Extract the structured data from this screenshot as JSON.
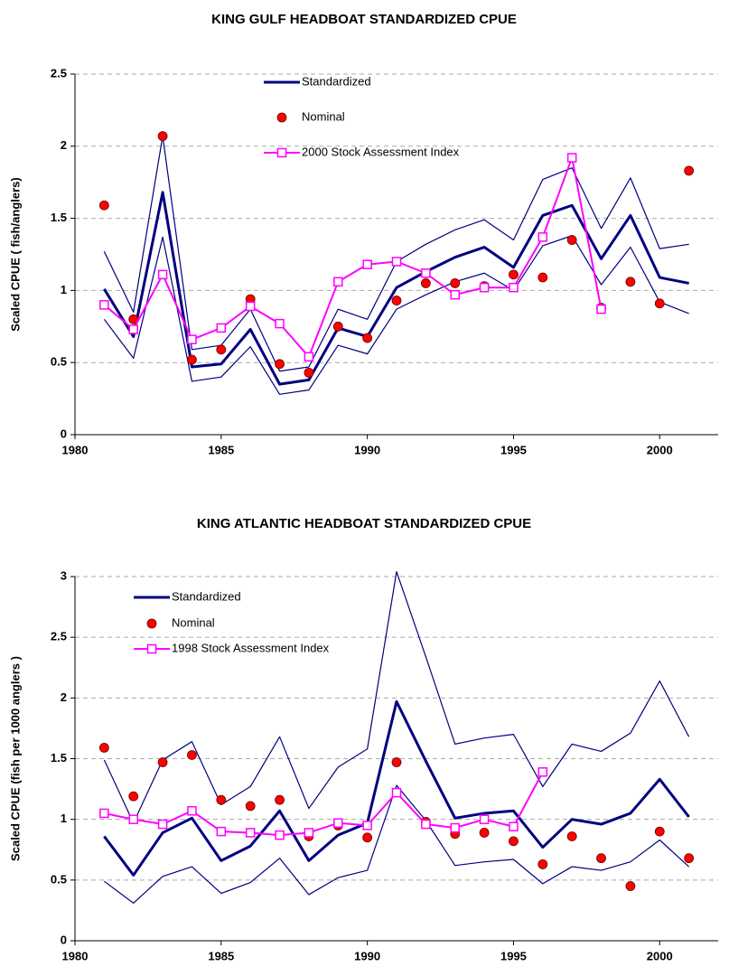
{
  "chart_data": [
    {
      "type": "line",
      "title": "KING GULF HEADBOAT STANDARDIZED CPUE",
      "y_label": "Scaled CPUE ( fish/anglers)",
      "x": [
        1981,
        1982,
        1983,
        1984,
        1985,
        1986,
        1987,
        1988,
        1989,
        1990,
        1991,
        1992,
        1993,
        1994,
        1995,
        1996,
        1997,
        1998,
        1999,
        2000,
        2001
      ],
      "xlim": [
        1980,
        2002
      ],
      "xticks": [
        1980,
        1985,
        1990,
        1995,
        2000
      ],
      "ylim": [
        0,
        2.5
      ],
      "yticks": [
        0,
        0.5,
        1,
        1.5,
        2,
        2.5
      ],
      "grid": true,
      "series": [
        {
          "name": "Standardized",
          "color": "#000080",
          "style": "thick-line",
          "values": [
            1.01,
            0.68,
            1.68,
            0.47,
            0.49,
            0.73,
            0.35,
            0.38,
            0.74,
            0.68,
            1.02,
            1.13,
            1.23,
            1.3,
            1.16,
            1.52,
            1.59,
            1.22,
            1.52,
            1.09,
            1.05
          ]
        },
        {
          "color": "#000080",
          "style": "line",
          "values": [
            1.27,
            0.85,
            2.07,
            0.59,
            0.62,
            0.87,
            0.44,
            0.47,
            0.87,
            0.8,
            1.2,
            1.32,
            1.42,
            1.49,
            1.35,
            1.77,
            1.85,
            1.43,
            1.78,
            1.29,
            1.32
          ]
        },
        {
          "color": "#000080",
          "style": "line",
          "values": [
            0.8,
            0.53,
            1.37,
            0.37,
            0.4,
            0.61,
            0.28,
            0.31,
            0.62,
            0.56,
            0.87,
            0.97,
            1.06,
            1.12,
            1.0,
            1.31,
            1.38,
            1.04,
            1.3,
            0.92,
            0.84
          ]
        },
        {
          "name": "Nominal",
          "color": "#ff0000",
          "style": "marker",
          "values": [
            1.59,
            0.8,
            2.07,
            0.52,
            0.59,
            0.94,
            0.49,
            0.43,
            0.75,
            0.67,
            0.93,
            1.05,
            1.05,
            1.03,
            1.11,
            1.09,
            1.35,
            0.88,
            1.06,
            0.91,
            1.83
          ]
        },
        {
          "name": "2000 Stock Assessment Index",
          "color": "#ff00ff",
          "style": "line-square",
          "values": [
            0.9,
            0.73,
            1.11,
            0.66,
            0.74,
            0.89,
            0.77,
            0.54,
            1.06,
            1.18,
            1.2,
            1.12,
            0.97,
            1.02,
            1.02,
            1.37,
            1.92,
            0.87,
            null,
            null,
            null
          ]
        }
      ]
    },
    {
      "type": "line",
      "title": "KING ATLANTIC HEADBOAT STANDARDIZED CPUE",
      "y_label": "Scaled CPUE  (fish per 1000 anglers )",
      "x": [
        1981,
        1982,
        1983,
        1984,
        1985,
        1986,
        1987,
        1988,
        1989,
        1990,
        1991,
        1992,
        1993,
        1994,
        1995,
        1996,
        1997,
        1998,
        1999,
        2000,
        2001
      ],
      "xlim": [
        1980,
        2002
      ],
      "xticks": [
        1980,
        1985,
        1990,
        1995,
        2000
      ],
      "ylim": [
        0,
        3
      ],
      "yticks": [
        0,
        0.5,
        1,
        1.5,
        2,
        2.5,
        3
      ],
      "grid": true,
      "series": [
        {
          "name": "Standardized",
          "color": "#000080",
          "style": "thick-line",
          "values": [
            0.86,
            0.54,
            0.89,
            1.01,
            0.66,
            0.78,
            1.07,
            0.66,
            0.87,
            0.97,
            1.97,
            1.48,
            1.01,
            1.05,
            1.07,
            0.77,
            1.0,
            0.96,
            1.05,
            1.33,
            1.02
          ]
        },
        {
          "color": "#000080",
          "style": "line",
          "values": [
            1.49,
            0.97,
            1.49,
            1.64,
            1.12,
            1.27,
            1.68,
            1.09,
            1.43,
            1.58,
            3.04,
            2.34,
            1.62,
            1.67,
            1.7,
            1.27,
            1.62,
            1.56,
            1.71,
            2.14,
            1.68
          ]
        },
        {
          "color": "#000080",
          "style": "line",
          "values": [
            0.49,
            0.31,
            0.53,
            0.61,
            0.39,
            0.48,
            0.68,
            0.38,
            0.52,
            0.58,
            1.28,
            0.99,
            0.62,
            0.65,
            0.67,
            0.47,
            0.61,
            0.58,
            0.65,
            0.83,
            0.61
          ]
        },
        {
          "name": "Nominal",
          "color": "#ff0000",
          "style": "marker",
          "values": [
            1.59,
            1.19,
            1.47,
            1.53,
            1.16,
            1.11,
            1.16,
            0.86,
            0.95,
            0.85,
            1.47,
            0.98,
            0.88,
            0.89,
            0.82,
            0.63,
            0.86,
            0.68,
            0.45,
            0.9,
            0.68
          ]
        },
        {
          "name": "1998 Stock Assessment Index",
          "color": "#ff00ff",
          "style": "line-square",
          "values": [
            1.05,
            1.0,
            0.96,
            1.07,
            0.9,
            0.89,
            0.87,
            0.89,
            0.97,
            0.95,
            1.22,
            0.96,
            0.93,
            1.0,
            0.94,
            1.39,
            null,
            null,
            null,
            null,
            null
          ]
        }
      ]
    }
  ]
}
